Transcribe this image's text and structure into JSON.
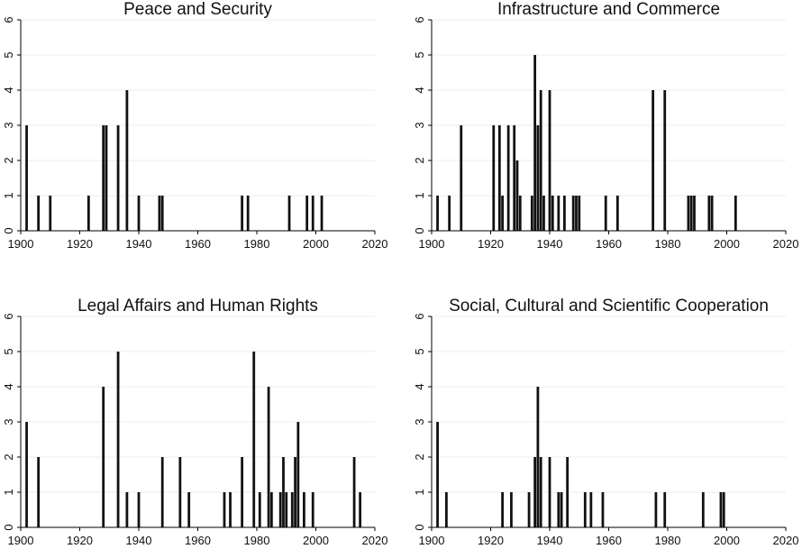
{
  "chart_data": [
    {
      "type": "bar",
      "title": "Peace and Security",
      "xlabel": "",
      "ylabel": "",
      "xlim": [
        1900,
        2020
      ],
      "ylim": [
        0,
        6
      ],
      "x_ticks": [
        1900,
        1920,
        1940,
        1960,
        1980,
        2000,
        2020
      ],
      "y_ticks": [
        0,
        1,
        2,
        3,
        4,
        5,
        6
      ],
      "grid": "horizontal",
      "x": [
        1902,
        1906,
        1910,
        1923,
        1928,
        1929,
        1933,
        1936,
        1940,
        1947,
        1948,
        1975,
        1977,
        1991,
        1997,
        1999,
        2002
      ],
      "values": [
        3,
        1,
        1,
        1,
        3,
        3,
        3,
        4,
        1,
        1,
        1,
        1,
        1,
        1,
        1,
        1,
        1
      ]
    },
    {
      "type": "bar",
      "title": "Infrastructure and Commerce",
      "xlabel": "",
      "ylabel": "",
      "xlim": [
        1900,
        2020
      ],
      "ylim": [
        0,
        6
      ],
      "x_ticks": [
        1900,
        1920,
        1940,
        1960,
        1980,
        2000,
        2020
      ],
      "y_ticks": [
        0,
        1,
        2,
        3,
        4,
        5,
        6
      ],
      "grid": "horizontal",
      "x": [
        1902,
        1906,
        1910,
        1921,
        1923,
        1924,
        1926,
        1928,
        1929,
        1930,
        1934,
        1935,
        1936,
        1937,
        1938,
        1940,
        1941,
        1943,
        1945,
        1948,
        1949,
        1950,
        1959,
        1963,
        1975,
        1979,
        1987,
        1988,
        1989,
        1994,
        1995,
        2003
      ],
      "values": [
        1,
        1,
        3,
        3,
        3,
        1,
        3,
        3,
        2,
        1,
        1,
        5,
        3,
        4,
        1,
        4,
        1,
        1,
        1,
        1,
        1,
        1,
        1,
        1,
        4,
        4,
        1,
        1,
        1,
        1,
        1,
        1
      ]
    },
    {
      "type": "bar",
      "title": "Legal Affairs and Human Rights",
      "xlabel": "",
      "ylabel": "",
      "xlim": [
        1900,
        2020
      ],
      "ylim": [
        0,
        6
      ],
      "x_ticks": [
        1900,
        1920,
        1940,
        1960,
        1980,
        2000,
        2020
      ],
      "y_ticks": [
        0,
        1,
        2,
        3,
        4,
        5,
        6
      ],
      "grid": "horizontal",
      "x": [
        1902,
        1906,
        1928,
        1933,
        1936,
        1940,
        1948,
        1954,
        1957,
        1969,
        1971,
        1975,
        1979,
        1981,
        1984,
        1985,
        1988,
        1989,
        1990,
        1992,
        1993,
        1994,
        1996,
        1999,
        2013,
        2015
      ],
      "values": [
        3,
        2,
        4,
        5,
        1,
        1,
        2,
        2,
        1,
        1,
        1,
        2,
        5,
        1,
        4,
        1,
        1,
        2,
        1,
        1,
        2,
        3,
        1,
        1,
        2,
        1
      ]
    },
    {
      "type": "bar",
      "title": "Social, Cultural and Scientific Cooperation",
      "xlabel": "",
      "ylabel": "",
      "xlim": [
        1900,
        2020
      ],
      "ylim": [
        0,
        6
      ],
      "x_ticks": [
        1900,
        1920,
        1940,
        1960,
        1980,
        2000,
        2020
      ],
      "y_ticks": [
        0,
        1,
        2,
        3,
        4,
        5,
        6
      ],
      "grid": "horizontal",
      "x": [
        1902,
        1905,
        1924,
        1927,
        1933,
        1935,
        1936,
        1937,
        1940,
        1943,
        1944,
        1946,
        1952,
        1954,
        1958,
        1976,
        1979,
        1992,
        1998,
        1999
      ],
      "values": [
        3,
        1,
        1,
        1,
        1,
        2,
        4,
        2,
        2,
        1,
        1,
        2,
        1,
        1,
        1,
        1,
        1,
        1,
        1,
        1
      ]
    }
  ]
}
